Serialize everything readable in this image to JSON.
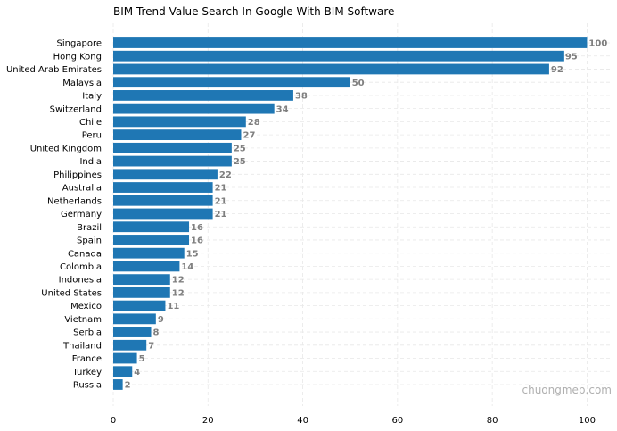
{
  "colors": {
    "bar": "#1f77b4",
    "data_label": "#7f7f7f",
    "grid": "#e8e8e8"
  },
  "watermark": "chuongmep.com",
  "chart_data": {
    "type": "bar",
    "orientation": "horizontal",
    "title": "BIM Trend Value Search In Google With BIM Software",
    "xlabel": "",
    "ylabel": "",
    "xlim": [
      0,
      105
    ],
    "xticks": [
      0,
      20,
      40,
      60,
      80,
      100
    ],
    "grid": true,
    "categories": [
      "Singapore",
      "Hong Kong",
      "United Arab Emirates",
      "Malaysia",
      "Italy",
      "Switzerland",
      "Chile",
      "Peru",
      "United Kingdom",
      "India",
      "Philippines",
      "Australia",
      "Netherlands",
      "Germany",
      "Brazil",
      "Spain",
      "Canada",
      "Colombia",
      "Indonesia",
      "United States",
      "Mexico",
      "Vietnam",
      "Serbia",
      "Thailand",
      "France",
      "Turkey",
      "Russia"
    ],
    "values": [
      100,
      95,
      92,
      50,
      38,
      34,
      28,
      27,
      25,
      25,
      22,
      21,
      21,
      21,
      16,
      16,
      15,
      14,
      12,
      12,
      11,
      9,
      8,
      7,
      5,
      4,
      2
    ]
  }
}
